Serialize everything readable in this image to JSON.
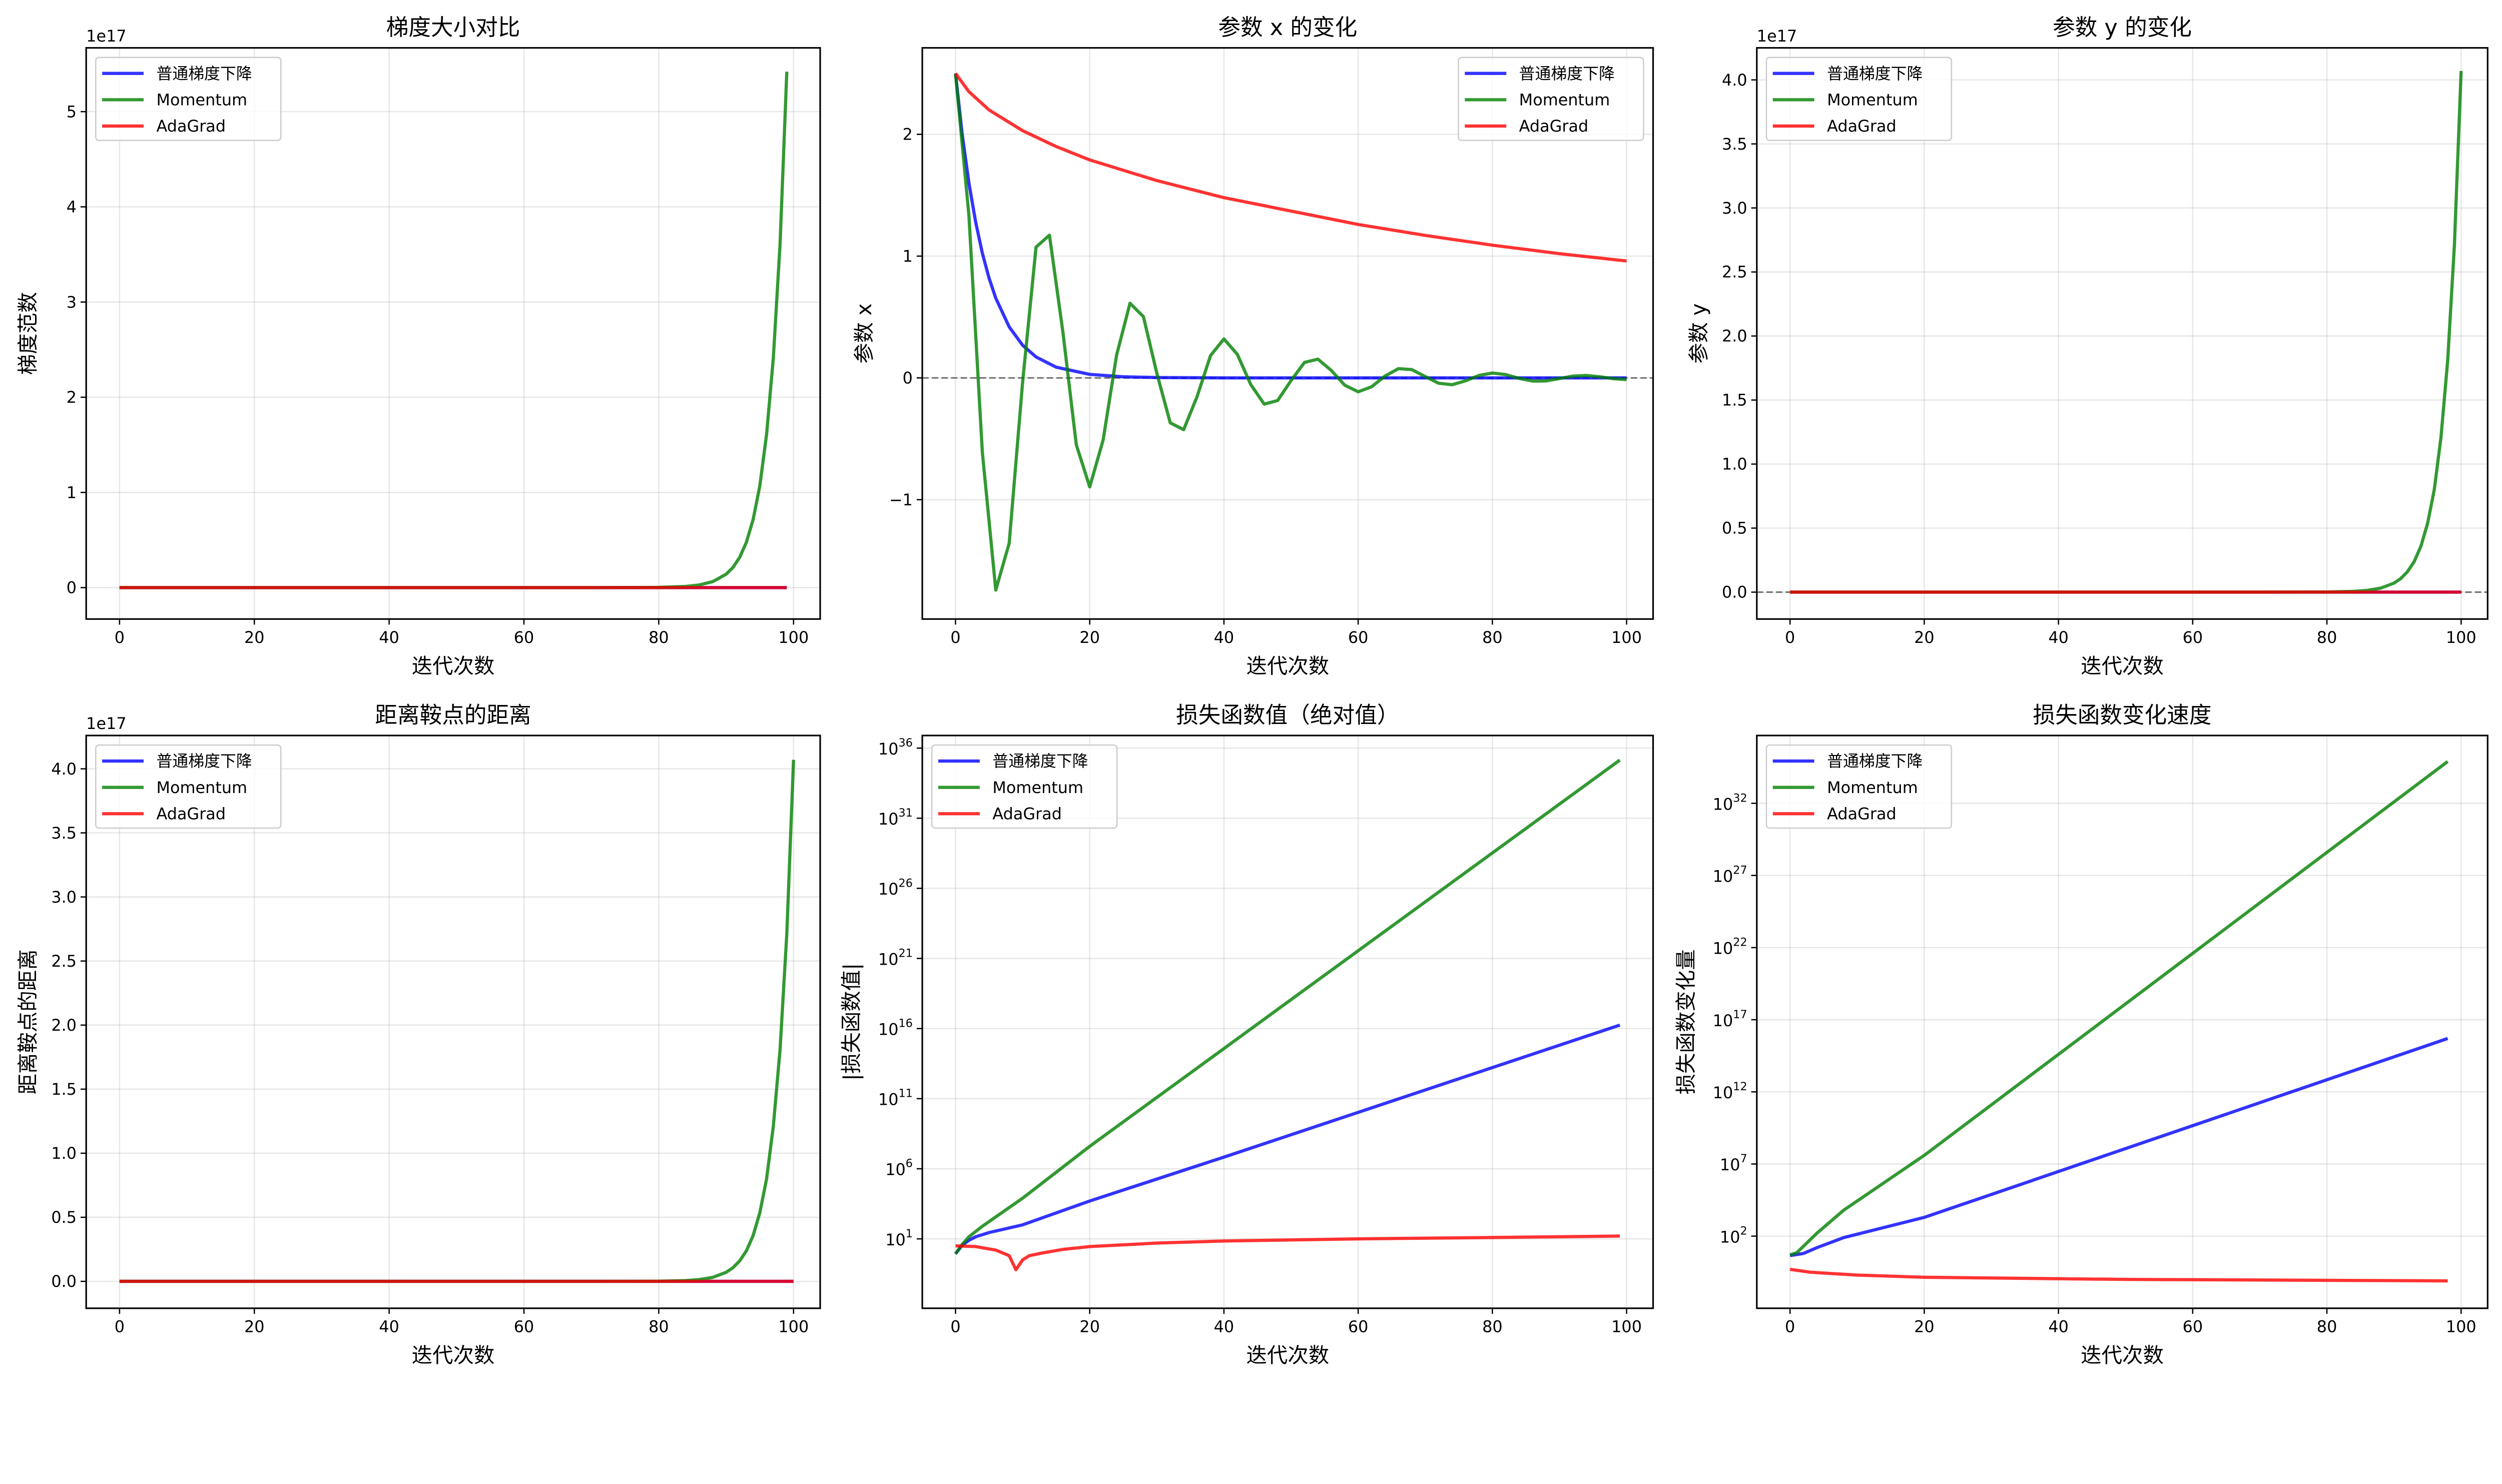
{
  "legend": [
    "普通梯度下降",
    "Momentum",
    "AdaGrad"
  ],
  "colors": {
    "gd": "#0000ff",
    "momentum": "#008000",
    "adagrad": "#ff0000",
    "ref": "#555555"
  },
  "chart_data": [
    {
      "type": "line",
      "title": "梯度大小对比",
      "xlabel": "迭代次数",
      "ylabel": "梯度范数",
      "yscale": "linear",
      "offset_text": "1e17",
      "xlim": [
        -4.95,
        103.95
      ],
      "ylim": [
        -0.33,
        5.67
      ],
      "xticks": [
        0,
        20,
        40,
        60,
        80,
        100
      ],
      "yticks": [
        0,
        1,
        2,
        3,
        4,
        5
      ],
      "yticklabels": [
        "0",
        "1",
        "2",
        "3",
        "4",
        "5"
      ],
      "hline": null,
      "grid": true,
      "legend_loc": "upper left",
      "series": [
        {
          "name": "普通梯度下降",
          "x": [
            0,
            99
          ],
          "y": [
            0,
            0
          ]
        },
        {
          "name": "Momentum",
          "x": [
            0,
            70,
            80,
            84,
            86,
            88,
            90,
            91,
            92,
            93,
            94,
            95,
            96,
            97,
            98,
            99
          ],
          "y": [
            0,
            0,
            0.0025,
            0.0124,
            0.0278,
            0.0627,
            0.141,
            0.211,
            0.317,
            0.476,
            0.714,
            1.07,
            1.61,
            2.41,
            3.61,
            5.42
          ]
        },
        {
          "name": "AdaGrad",
          "x": [
            0,
            99
          ],
          "y": [
            0,
            0
          ]
        }
      ]
    },
    {
      "type": "line",
      "title": "参数 x 的变化",
      "xlabel": "迭代次数",
      "ylabel": "参数 x",
      "yscale": "linear",
      "offset_text": "",
      "xlim": [
        -4.95,
        103.95
      ],
      "ylim": [
        -1.98,
        2.71
      ],
      "xticks": [
        0,
        20,
        40,
        60,
        80,
        100
      ],
      "yticks": [
        -1,
        0,
        1,
        2
      ],
      "yticklabels": [
        "−1",
        "0",
        "1",
        "2"
      ],
      "hline": 0,
      "grid": true,
      "legend_loc": "upper right",
      "series": [
        {
          "name": "普通梯度下降",
          "x": [
            0,
            1,
            2,
            3,
            4,
            5,
            6,
            8,
            10,
            12,
            15,
            20,
            25,
            30,
            40,
            100
          ],
          "y": [
            2.5,
            2.0,
            1.6,
            1.28,
            1.024,
            0.819,
            0.655,
            0.419,
            0.268,
            0.172,
            0.088,
            0.029,
            0.009,
            0.003,
            0,
            0
          ]
        },
        {
          "name": "Momentum",
          "x": [
            0,
            2,
            4,
            6,
            8,
            10,
            12,
            14,
            16,
            18,
            20,
            22,
            24,
            26,
            28,
            30,
            32,
            34,
            36,
            38,
            40,
            42,
            44,
            46,
            48,
            50,
            52,
            54,
            56,
            58,
            60,
            62,
            64,
            66,
            68,
            70,
            72,
            74,
            76,
            78,
            80,
            82,
            84,
            86,
            88,
            90,
            92,
            94,
            96,
            98,
            100
          ],
          "y": [
            2.5,
            1.333,
            -0.611,
            -1.742,
            -1.358,
            -0.034,
            1.074,
            1.172,
            0.378,
            -0.549,
            -0.895,
            -0.51,
            0.186,
            0.613,
            0.503,
            0.038,
            -0.369,
            -0.425,
            -0.153,
            0.183,
            0.32,
            0.193,
            -0.055,
            -0.215,
            -0.186,
            -0.022,
            0.127,
            0.154,
            0.061,
            -0.06,
            -0.114,
            -0.073,
            0.015,
            0.076,
            0.068,
            0.011,
            -0.044,
            -0.056,
            -0.024,
            0.02,
            0.04,
            0.027,
            -0.004,
            -0.026,
            -0.025,
            -0.005,
            0.015,
            0.02,
            0.009,
            -0.006,
            -0.014
          ]
        },
        {
          "name": "AdaGrad",
          "x": [
            0,
            2,
            5,
            10,
            15,
            20,
            30,
            40,
            50,
            60,
            70,
            80,
            90,
            100
          ],
          "y": [
            2.5,
            2.35,
            2.2,
            2.03,
            1.9,
            1.79,
            1.62,
            1.48,
            1.37,
            1.26,
            1.17,
            1.09,
            1.02,
            0.96
          ]
        }
      ]
    },
    {
      "type": "line",
      "title": "参数 y 的变化",
      "xlabel": "迭代次数",
      "ylabel": "参数 y",
      "yscale": "linear",
      "offset_text": "1e17",
      "xlim": [
        -4.95,
        103.95
      ],
      "ylim": [
        -0.21,
        4.25
      ],
      "xticks": [
        0,
        20,
        40,
        60,
        80,
        100
      ],
      "yticks": [
        0,
        0.5,
        1,
        1.5,
        2,
        2.5,
        3,
        3.5,
        4
      ],
      "yticklabels": [
        "0.0",
        "0.5",
        "1.0",
        "1.5",
        "2.0",
        "2.5",
        "3.0",
        "3.5",
        "4.0"
      ],
      "hline": 0,
      "grid": true,
      "legend_loc": "upper left",
      "series": [
        {
          "name": "普通梯度下降",
          "x": [
            0,
            100
          ],
          "y": [
            0,
            0
          ]
        },
        {
          "name": "Momentum",
          "x": [
            0,
            70,
            80,
            84,
            86,
            88,
            90,
            91,
            92,
            93,
            94,
            95,
            96,
            97,
            98,
            99,
            100
          ],
          "y": [
            0,
            0,
            0.0012,
            0.0062,
            0.0139,
            0.031,
            0.0706,
            0.106,
            0.159,
            0.238,
            0.357,
            0.536,
            0.8,
            1.21,
            1.81,
            2.71,
            4.07
          ]
        },
        {
          "name": "AdaGrad",
          "x": [
            0,
            100
          ],
          "y": [
            0,
            0
          ]
        }
      ]
    },
    {
      "type": "line",
      "title": "距离鞍点的距离",
      "xlabel": "迭代次数",
      "ylabel": "距离鞍点的距离",
      "yscale": "linear",
      "offset_text": "1e17",
      "xlim": [
        -4.95,
        103.95
      ],
      "ylim": [
        -0.21,
        4.26
      ],
      "xticks": [
        0,
        20,
        40,
        60,
        80,
        100
      ],
      "yticks": [
        0,
        0.5,
        1,
        1.5,
        2,
        2.5,
        3,
        3.5,
        4
      ],
      "yticklabels": [
        "0.0",
        "0.5",
        "1.0",
        "1.5",
        "2.0",
        "2.5",
        "3.0",
        "3.5",
        "4.0"
      ],
      "hline": null,
      "grid": true,
      "legend_loc": "upper left",
      "series": [
        {
          "name": "普通梯度下降",
          "x": [
            0,
            100
          ],
          "y": [
            0,
            0
          ]
        },
        {
          "name": "Momentum",
          "x": [
            0,
            70,
            80,
            84,
            86,
            88,
            90,
            91,
            92,
            93,
            94,
            95,
            96,
            97,
            98,
            99,
            100
          ],
          "y": [
            0,
            0,
            0.0012,
            0.0062,
            0.0139,
            0.031,
            0.0706,
            0.106,
            0.159,
            0.238,
            0.357,
            0.536,
            0.8,
            1.21,
            1.81,
            2.71,
            4.07
          ]
        },
        {
          "name": "AdaGrad",
          "x": [
            0,
            100
          ],
          "y": [
            0,
            0
          ]
        }
      ]
    },
    {
      "type": "line",
      "title": "损失函数值（绝对值）",
      "xlabel": "迭代次数",
      "ylabel": "|损失函数值|",
      "yscale": "log",
      "offset_text": "",
      "xlim": [
        -4.95,
        103.95
      ],
      "ylim_log10": [
        -3.95,
        36.9
      ],
      "xticks": [
        0,
        20,
        40,
        60,
        80,
        100
      ],
      "yticks_log10": [
        1,
        6,
        11,
        16,
        21,
        26,
        31,
        36
      ],
      "hline": null,
      "grid": true,
      "legend_loc": "upper left",
      "series": [
        {
          "name": "普通梯度下降",
          "x": [
            0,
            1,
            2,
            3,
            5,
            10,
            20,
            40,
            99
          ],
          "log10_y": [
            -0.07,
            0.55,
            0.9,
            1.15,
            1.45,
            2.0,
            3.7,
            6.83,
            16.25
          ]
        },
        {
          "name": "Momentum",
          "x": [
            0,
            1,
            2,
            4,
            10,
            20,
            99
          ],
          "log10_y": [
            -0.07,
            0.6,
            1.15,
            1.9,
            3.9,
            7.6,
            35.15
          ]
        },
        {
          "name": "AdaGrad",
          "x": [
            0,
            3,
            6,
            8,
            9,
            10,
            11,
            13,
            16,
            20,
            30,
            40,
            60,
            80,
            99
          ],
          "log10_y": [
            0.5,
            0.45,
            0.2,
            -0.2,
            -1.2,
            -0.5,
            -0.2,
            0.0,
            0.25,
            0.45,
            0.7,
            0.85,
            1.0,
            1.1,
            1.2
          ]
        }
      ]
    },
    {
      "type": "line",
      "title": "损失函数变化速度",
      "xlabel": "迭代次数",
      "ylabel": "损失函数变化量",
      "yscale": "log",
      "offset_text": "",
      "xlim": [
        -4.95,
        103.95
      ],
      "ylim_log10": [
        -3.0,
        36.7
      ],
      "xticks": [
        0,
        20,
        40,
        60,
        80,
        100
      ],
      "yticks_log10": [
        2,
        7,
        12,
        17,
        22,
        27,
        32
      ],
      "hline": null,
      "grid": true,
      "legend_loc": "upper left",
      "series": [
        {
          "name": "普通梯度下降",
          "x": [
            0,
            2,
            4,
            8,
            20,
            98
          ],
          "log10_y": [
            0.65,
            0.8,
            1.2,
            1.9,
            3.3,
            15.7
          ]
        },
        {
          "name": "Momentum",
          "x": [
            0,
            1,
            2,
            4,
            8,
            20,
            98
          ],
          "log10_y": [
            0.7,
            0.85,
            1.3,
            2.2,
            3.8,
            7.6,
            34.9
          ]
        },
        {
          "name": "AdaGrad",
          "x": [
            0,
            3,
            10,
            20,
            50,
            98
          ],
          "log10_y": [
            -0.3,
            -0.5,
            -0.7,
            -0.85,
            -1.0,
            -1.1
          ]
        }
      ]
    }
  ]
}
